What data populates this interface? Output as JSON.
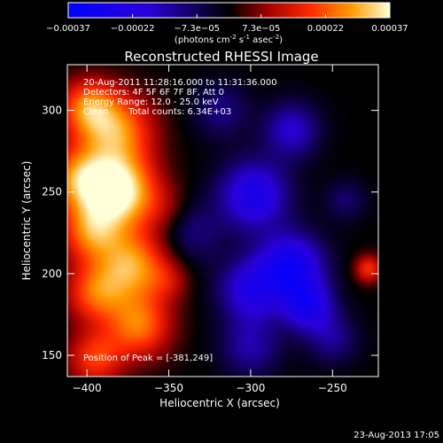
{
  "chart_data": {
    "type": "heatmap",
    "title": "Reconstructed RHESSI Image",
    "xlabel": "Heliocentric X (arcsec)",
    "ylabel": "Heliocentric Y (arcsec)",
    "xlim": [
      -412,
      -222
    ],
    "ylim": [
      137,
      328
    ],
    "x_ticks": [
      -400,
      -350,
      -300,
      -250
    ],
    "y_ticks": [
      150,
      200,
      250,
      300
    ],
    "colorbar": {
      "range": [
        -0.00037,
        0.00037
      ],
      "ticks": [
        "-0.00037",
        "-0.00022",
        "-7.3e-05",
        "7.3e-05",
        "0.00022",
        "0.00037"
      ],
      "label": "(photons cm",
      "label_exp1": "-2",
      "label_mid": " s",
      "label_exp2": "-1",
      "label_end": " asec",
      "label_exp3": "-2",
      "label_close": ")"
    },
    "annotations": {
      "time": "20-Aug-2011 11:28:16.000 to 11:31:36.000",
      "detectors": "Detectors: 4F 5F 6F 7F 8F, Att 0",
      "energy": "Energy Range: 12.0 - 25.0 keV",
      "clean_label": "Clean",
      "total_counts": "Total counts: 6.34E+03",
      "peak": "Position of Peak = [-381,249]"
    },
    "intensity_sources": [
      {
        "x": -380,
        "y": 250,
        "value": 0.00037,
        "spread": 16
      },
      {
        "x": -382,
        "y": 288,
        "value": 0.00026,
        "spread": 16
      },
      {
        "x": -400,
        "y": 302,
        "value": 0.00022,
        "spread": 12
      },
      {
        "x": -405,
        "y": 258,
        "value": 0.00024,
        "spread": 14
      },
      {
        "x": -398,
        "y": 225,
        "value": 0.00022,
        "spread": 13
      },
      {
        "x": -372,
        "y": 205,
        "value": 0.00027,
        "spread": 15
      },
      {
        "x": -395,
        "y": 188,
        "value": 0.00021,
        "spread": 13
      },
      {
        "x": -368,
        "y": 168,
        "value": 0.00024,
        "spread": 14
      },
      {
        "x": -395,
        "y": 148,
        "value": 0.00019,
        "spread": 12
      },
      {
        "x": -352,
        "y": 240,
        "value": 6e-05,
        "spread": 10
      },
      {
        "x": -350,
        "y": 196,
        "value": 8e-05,
        "spread": 9
      },
      {
        "x": -228,
        "y": 203,
        "value": 0.00018,
        "spread": 6
      },
      {
        "x": -298,
        "y": 248,
        "value": -0.00026,
        "spread": 15
      },
      {
        "x": -275,
        "y": 205,
        "value": -0.00029,
        "spread": 14
      },
      {
        "x": -300,
        "y": 190,
        "value": -0.00022,
        "spread": 14
      },
      {
        "x": -265,
        "y": 180,
        "value": -0.00024,
        "spread": 11
      },
      {
        "x": -275,
        "y": 288,
        "value": -0.00018,
        "spread": 12
      },
      {
        "x": -318,
        "y": 300,
        "value": -0.00011,
        "spread": 12
      },
      {
        "x": -300,
        "y": 155,
        "value": -0.00014,
        "spread": 13
      },
      {
        "x": -250,
        "y": 160,
        "value": -0.00012,
        "spread": 11
      },
      {
        "x": -335,
        "y": 225,
        "value": -0.0001,
        "spread": 13
      },
      {
        "x": -242,
        "y": 245,
        "value": -9e-05,
        "spread": 9
      }
    ]
  },
  "footer": {
    "timestamp": "23-Aug-2013 17:05"
  }
}
